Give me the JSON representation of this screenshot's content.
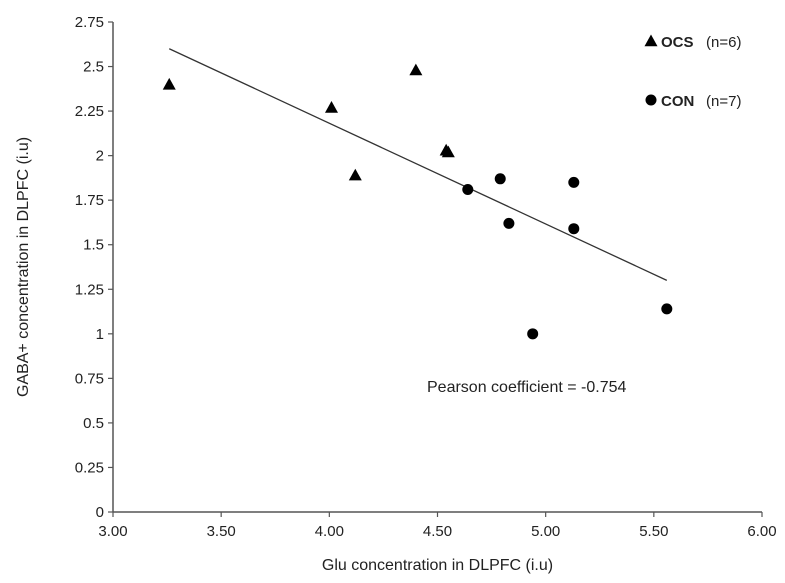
{
  "chart_data": {
    "type": "scatter",
    "xlabel": "Glu concentration in DLPFC (i.u)",
    "ylabel": "GABA+ concentration in DLPFC (i.u)",
    "xlim": [
      3.0,
      6.0
    ],
    "ylim": [
      0,
      2.75
    ],
    "x_ticks": [
      "3.00",
      "3.50",
      "4.00",
      "4.50",
      "5.00",
      "5.50",
      "6.00"
    ],
    "y_ticks": [
      "0",
      "0.25",
      "0.5",
      "0.75",
      "1",
      "1.25",
      "1.5",
      "1.75",
      "2",
      "2.25",
      "2.5",
      "2.75"
    ],
    "grid": false,
    "legend_position": "top-right",
    "series": [
      {
        "name": "OCS",
        "name_suffix": "(n=6)",
        "marker": "triangle",
        "color": "#000000",
        "points": [
          {
            "x": 3.26,
            "y": 2.4
          },
          {
            "x": 4.01,
            "y": 2.27
          },
          {
            "x": 4.12,
            "y": 1.89
          },
          {
            "x": 4.4,
            "y": 2.48
          },
          {
            "x": 4.54,
            "y": 2.03
          },
          {
            "x": 4.55,
            "y": 2.02
          }
        ]
      },
      {
        "name": "CON",
        "name_suffix": "(n=7)",
        "marker": "circle",
        "color": "#000000",
        "points": [
          {
            "x": 4.64,
            "y": 1.81
          },
          {
            "x": 4.79,
            "y": 1.87
          },
          {
            "x": 4.83,
            "y": 1.62
          },
          {
            "x": 4.94,
            "y": 1.0
          },
          {
            "x": 5.13,
            "y": 1.85
          },
          {
            "x": 5.13,
            "y": 1.59
          },
          {
            "x": 5.56,
            "y": 1.14
          }
        ]
      }
    ],
    "trendline": {
      "type": "linear",
      "color": "#333333",
      "x": [
        3.26,
        5.56
      ],
      "y": [
        2.6,
        1.3
      ]
    },
    "annotation": "Pearson coefficient = -0.754"
  }
}
